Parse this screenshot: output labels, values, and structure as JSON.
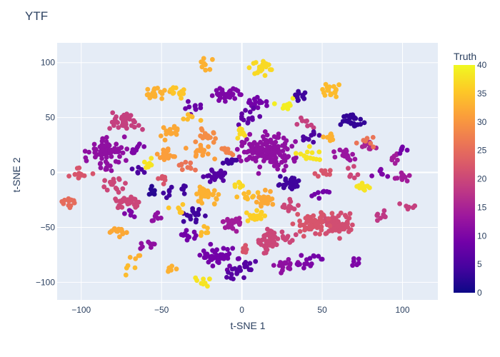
{
  "chart_data": {
    "type": "scatter",
    "title": "YTF",
    "xlabel": "t-SNE 1",
    "ylabel": "t-SNE 2",
    "xlim": [
      -115,
      122
    ],
    "ylim": [
      -116,
      118
    ],
    "xticks": [
      -100,
      -50,
      0,
      50,
      100
    ],
    "yticks": [
      -100,
      -50,
      0,
      50,
      100
    ],
    "grid": true,
    "background": "#e5ecf6",
    "colorbar": {
      "title": "Truth",
      "min": 0,
      "max": 40,
      "ticks": [
        0,
        5,
        10,
        15,
        20,
        25,
        30,
        35,
        40
      ],
      "colorscale": [
        "#0d0887",
        "#46039f",
        "#7201a8",
        "#9c179e",
        "#bd3786",
        "#d8576b",
        "#ed7953",
        "#fb9f3a",
        "#fdca26",
        "#f0f921"
      ]
    },
    "clusters": [
      {
        "x": 16,
        "y": 20,
        "truth": 12,
        "n": 140
      },
      {
        "x": -84,
        "y": 19,
        "truth": 12,
        "n": 70
      },
      {
        "x": 60,
        "y": -48,
        "truth": 21,
        "n": 60
      },
      {
        "x": 43,
        "y": -45,
        "truth": 22,
        "n": 55
      },
      {
        "x": 19,
        "y": -62,
        "truth": 20,
        "n": 55
      },
      {
        "x": -73,
        "y": 47,
        "truth": 19,
        "n": 40
      },
      {
        "x": -70,
        "y": -26,
        "truth": 20,
        "n": 30
      },
      {
        "x": -80,
        "y": -10,
        "truth": 20,
        "n": 15
      },
      {
        "x": -108,
        "y": -27,
        "truth": 25,
        "n": 12
      },
      {
        "x": -101,
        "y": -2,
        "truth": 22,
        "n": 12
      },
      {
        "x": -76,
        "y": -53,
        "truth": 32,
        "n": 14
      },
      {
        "x": -53,
        "y": 71,
        "truth": 33,
        "n": 20
      },
      {
        "x": -38,
        "y": 73,
        "truth": 35,
        "n": 14
      },
      {
        "x": -45,
        "y": 36,
        "truth": 32,
        "n": 16
      },
      {
        "x": -47,
        "y": 17,
        "truth": 31,
        "n": 18
      },
      {
        "x": -22,
        "y": 34,
        "truth": 29,
        "n": 18
      },
      {
        "x": -25,
        "y": 18,
        "truth": 31,
        "n": 14
      },
      {
        "x": -22,
        "y": 99,
        "truth": 33,
        "n": 8
      },
      {
        "x": -10,
        "y": 71,
        "truth": 10,
        "n": 30
      },
      {
        "x": -29,
        "y": 58,
        "truth": 8,
        "n": 10
      },
      {
        "x": 8,
        "y": 63,
        "truth": 9,
        "n": 16
      },
      {
        "x": 12,
        "y": 96,
        "truth": 37,
        "n": 22
      },
      {
        "x": 27,
        "y": 60,
        "truth": 39,
        "n": 10
      },
      {
        "x": 4,
        "y": 50,
        "truth": 7,
        "n": 14
      },
      {
        "x": 0,
        "y": 35,
        "truth": 37,
        "n": 10
      },
      {
        "x": -16,
        "y": -2,
        "truth": 6,
        "n": 20
      },
      {
        "x": -30,
        "y": -39,
        "truth": 4,
        "n": 16
      },
      {
        "x": -22,
        "y": -20,
        "truth": 33,
        "n": 30
      },
      {
        "x": -32,
        "y": -57,
        "truth": 9,
        "n": 10
      },
      {
        "x": -15,
        "y": -77,
        "truth": 9,
        "n": 45
      },
      {
        "x": -4,
        "y": -92,
        "truth": 6,
        "n": 12
      },
      {
        "x": 4,
        "y": -85,
        "truth": 6,
        "n": 12
      },
      {
        "x": -6,
        "y": -47,
        "truth": 14,
        "n": 22
      },
      {
        "x": 15,
        "y": -24,
        "truth": 32,
        "n": 22
      },
      {
        "x": 8,
        "y": -40,
        "truth": 36,
        "n": 16
      },
      {
        "x": 30,
        "y": -10,
        "truth": 4,
        "n": 28
      },
      {
        "x": 30,
        "y": -30,
        "truth": 20,
        "n": 14
      },
      {
        "x": 27,
        "y": -85,
        "truth": 12,
        "n": 18
      },
      {
        "x": 40,
        "y": -82,
        "truth": 10,
        "n": 10
      },
      {
        "x": 35,
        "y": 69,
        "truth": 4,
        "n": 10
      },
      {
        "x": 40,
        "y": 45,
        "truth": 19,
        "n": 8
      },
      {
        "x": 43,
        "y": 31,
        "truth": 5,
        "n": 10
      },
      {
        "x": 42,
        "y": 17,
        "truth": 38,
        "n": 14
      },
      {
        "x": 56,
        "y": 75,
        "truth": 34,
        "n": 18
      },
      {
        "x": 55,
        "y": 32,
        "truth": 33,
        "n": 8
      },
      {
        "x": 69,
        "y": 48,
        "truth": 3,
        "n": 30
      },
      {
        "x": 65,
        "y": 16,
        "truth": 13,
        "n": 18
      },
      {
        "x": 78,
        "y": 24,
        "truth": 15,
        "n": 10
      },
      {
        "x": 79,
        "y": 29,
        "truth": 26,
        "n": 8
      },
      {
        "x": 75,
        "y": -12,
        "truth": 38,
        "n": 10
      },
      {
        "x": 85,
        "y": 0,
        "truth": 10,
        "n": 6
      },
      {
        "x": 93,
        "y": 13,
        "truth": 14,
        "n": 8
      },
      {
        "x": 102,
        "y": -4,
        "truth": 14,
        "n": 10
      },
      {
        "x": 100,
        "y": 20,
        "truth": 9,
        "n": 6
      },
      {
        "x": 86,
        "y": -40,
        "truth": 18,
        "n": 8
      },
      {
        "x": 103,
        "y": -32,
        "truth": 19,
        "n": 6
      },
      {
        "x": 50,
        "y": -18,
        "truth": 9,
        "n": 8
      },
      {
        "x": 52,
        "y": 2,
        "truth": 22,
        "n": 8
      },
      {
        "x": 70,
        "y": 0,
        "truth": 20,
        "n": 6
      },
      {
        "x": 46,
        "y": -76,
        "truth": 9,
        "n": 6
      },
      {
        "x": 70,
        "y": -82,
        "truth": 10,
        "n": 6
      },
      {
        "x": -65,
        "y": 23,
        "truth": 10,
        "n": 8
      },
      {
        "x": -67,
        "y": -37,
        "truth": 10,
        "n": 6
      },
      {
        "x": -52,
        "y": -40,
        "truth": 12,
        "n": 8
      },
      {
        "x": -65,
        "y": 1,
        "truth": 5,
        "n": 6
      },
      {
        "x": -58,
        "y": 8,
        "truth": 38,
        "n": 8
      },
      {
        "x": -50,
        "y": -6,
        "truth": 22,
        "n": 6
      },
      {
        "x": -55,
        "y": -18,
        "truth": 2,
        "n": 6
      },
      {
        "x": -45,
        "y": -18,
        "truth": 4,
        "n": 6
      },
      {
        "x": -35,
        "y": -14,
        "truth": 4,
        "n": 6
      },
      {
        "x": -35,
        "y": 5,
        "truth": 26,
        "n": 10
      },
      {
        "x": -10,
        "y": 20,
        "truth": 28,
        "n": 8
      },
      {
        "x": -8,
        "y": 10,
        "truth": 4,
        "n": 10
      },
      {
        "x": 2,
        "y": -22,
        "truth": 34,
        "n": 10
      },
      {
        "x": 2,
        "y": -70,
        "truth": 22,
        "n": 6
      },
      {
        "x": -45,
        "y": -89,
        "truth": 33,
        "n": 6
      },
      {
        "x": -25,
        "y": -100,
        "truth": 38,
        "n": 8
      },
      {
        "x": -60,
        "y": -66,
        "truth": 12,
        "n": 8
      },
      {
        "x": -70,
        "y": -88,
        "truth": 34,
        "n": 4
      },
      {
        "x": -68,
        "y": -76,
        "truth": 33,
        "n": 4
      },
      {
        "x": -82,
        "y": 5,
        "truth": 12,
        "n": 8
      },
      {
        "x": -32,
        "y": 50,
        "truth": 34,
        "n": 6
      },
      {
        "x": -40,
        "y": -33,
        "truth": 35,
        "n": 6
      },
      {
        "x": -25,
        "y": -53,
        "truth": 34,
        "n": 6
      },
      {
        "x": -3,
        "y": -12,
        "truth": 37,
        "n": 6
      }
    ]
  }
}
